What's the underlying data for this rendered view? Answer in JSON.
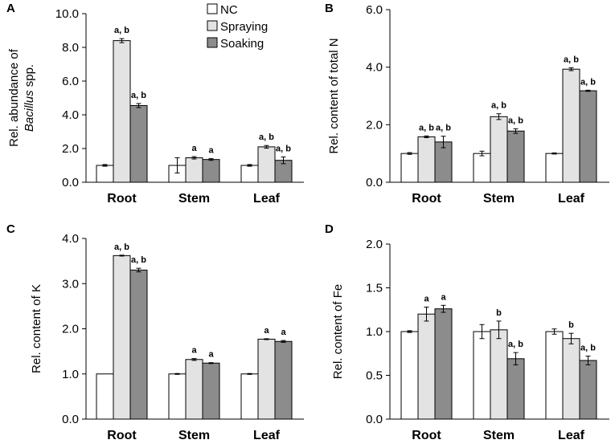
{
  "chart_data": [
    {
      "panel": "A",
      "type": "bar",
      "ylabel": "Rel. abundance of",
      "ylabel_italic": "Bacillus",
      "ylabel_suffix": " spp.",
      "ylim": [
        0,
        10
      ],
      "yticks": [
        "0.0",
        "2.0",
        "4.0",
        "6.0",
        "8.0",
        "10.0"
      ],
      "ytick_values": [
        0,
        2,
        4,
        6,
        8,
        10
      ],
      "categories": [
        "Root",
        "Stem",
        "Leaf"
      ],
      "series": [
        {
          "name": "NC",
          "values": [
            1.0,
            1.0,
            1.0
          ],
          "errors": [
            0.05,
            0.45,
            0.05
          ],
          "sig": [
            "",
            "",
            ""
          ]
        },
        {
          "name": "Spraying",
          "values": [
            8.4,
            1.45,
            2.1
          ],
          "errors": [
            0.12,
            0.07,
            0.08
          ],
          "sig": [
            "a, b",
            "a",
            "a, b"
          ]
        },
        {
          "name": "Soaking",
          "values": [
            4.55,
            1.35,
            1.3
          ],
          "errors": [
            0.12,
            0.05,
            0.2
          ],
          "sig": [
            "a, b",
            "a",
            "a, b"
          ]
        }
      ],
      "legend": true
    },
    {
      "panel": "B",
      "type": "bar",
      "ylabel": "Rel. content of total N",
      "ylim": [
        0,
        6
      ],
      "yticks": [
        "0.0",
        "2.0",
        "4.0",
        "6.0"
      ],
      "ytick_values": [
        0,
        2,
        4,
        6
      ],
      "categories": [
        "Root",
        "Stem",
        "Leaf"
      ],
      "series": [
        {
          "name": "NC",
          "values": [
            1.0,
            1.0,
            1.0
          ],
          "errors": [
            0.03,
            0.08,
            0.02
          ],
          "sig": [
            "",
            "",
            ""
          ]
        },
        {
          "name": "Spraying",
          "values": [
            1.58,
            2.28,
            3.93
          ],
          "errors": [
            0.03,
            0.1,
            0.05
          ],
          "sig": [
            "a, b",
            "a, b",
            "a, b"
          ]
        },
        {
          "name": "Soaking",
          "values": [
            1.4,
            1.78,
            3.18
          ],
          "errors": [
            0.2,
            0.08,
            0.02
          ],
          "sig": [
            "a, b",
            "a, b",
            "a, b"
          ]
        }
      ]
    },
    {
      "panel": "C",
      "type": "bar",
      "ylabel": "Rel. content of K",
      "ylim": [
        0,
        4
      ],
      "yticks": [
        "0.0",
        "1.0",
        "2.0",
        "3.0",
        "4.0"
      ],
      "ytick_values": [
        0,
        1,
        2,
        3,
        4
      ],
      "categories": [
        "Root",
        "Stem",
        "Leaf"
      ],
      "series": [
        {
          "name": "NC",
          "values": [
            1.0,
            1.0,
            1.0
          ],
          "errors": [
            0.0,
            0.01,
            0.01
          ],
          "sig": [
            "",
            "",
            ""
          ]
        },
        {
          "name": "Spraying",
          "values": [
            3.62,
            1.32,
            1.77
          ],
          "errors": [
            0.01,
            0.02,
            0.01
          ],
          "sig": [
            "a, b",
            "a",
            "a"
          ]
        },
        {
          "name": "Soaking",
          "values": [
            3.3,
            1.24,
            1.72
          ],
          "errors": [
            0.04,
            0.01,
            0.02
          ],
          "sig": [
            "a, b",
            "a",
            "a"
          ]
        }
      ]
    },
    {
      "panel": "D",
      "type": "bar",
      "ylabel": "Rel. content of Fe",
      "ylim": [
        0,
        2
      ],
      "yticks": [
        "0.0",
        "0.5",
        "1.0",
        "1.5",
        "2.0"
      ],
      "ytick_values": [
        0,
        0.5,
        1,
        1.5,
        2
      ],
      "categories": [
        "Root",
        "Stem",
        "Leaf"
      ],
      "series": [
        {
          "name": "NC",
          "values": [
            1.0,
            1.0,
            1.0
          ],
          "errors": [
            0.01,
            0.08,
            0.03
          ],
          "sig": [
            "",
            "",
            ""
          ]
        },
        {
          "name": "Spraying",
          "values": [
            1.2,
            1.02,
            0.92
          ],
          "errors": [
            0.08,
            0.1,
            0.06
          ],
          "sig": [
            "a",
            "b",
            "b"
          ]
        },
        {
          "name": "Soaking",
          "values": [
            1.26,
            0.69,
            0.67
          ],
          "errors": [
            0.04,
            0.07,
            0.05
          ],
          "sig": [
            "a",
            "a, b",
            "a, b"
          ]
        }
      ]
    }
  ],
  "colors": {
    "NC": "#ffffff",
    "Spraying": "#e3e3e3",
    "Soaking": "#8c8c8c",
    "axis": "#000000"
  }
}
